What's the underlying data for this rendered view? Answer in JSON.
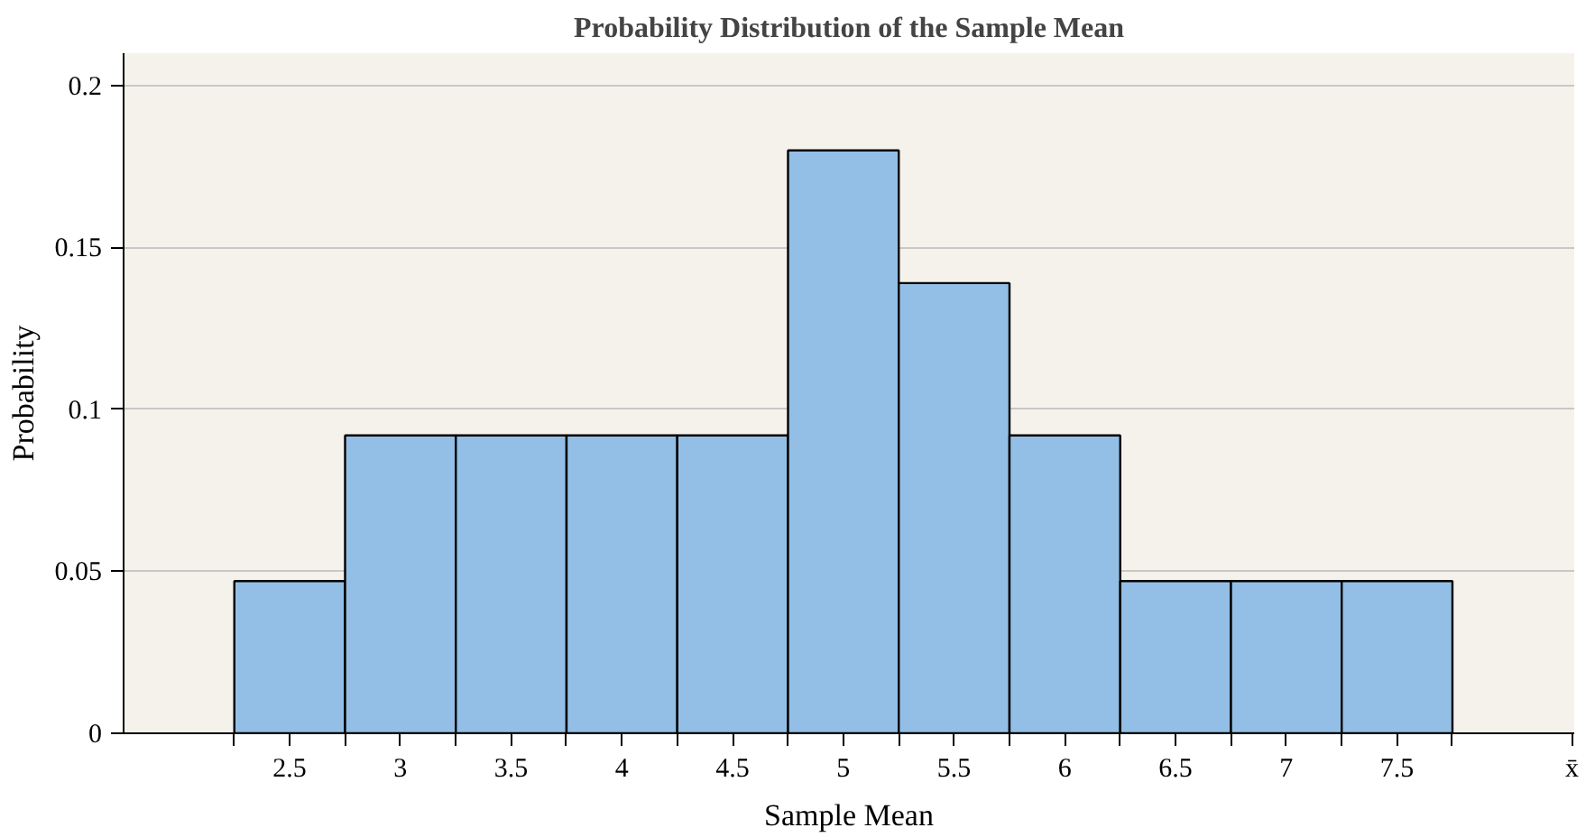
{
  "chart_data": {
    "type": "histogram",
    "title": "Probability Distribution of the Sample Mean",
    "xlabel": "Sample Mean",
    "ylabel": "Probability",
    "bins": [
      2.25,
      2.75,
      3.25,
      3.75,
      4.25,
      4.75,
      5.25,
      5.75,
      6.25,
      6.75,
      7.25,
      7.75
    ],
    "values": [
      0.047,
      0.092,
      0.092,
      0.092,
      0.092,
      0.18,
      0.139,
      0.092,
      0.047,
      0.047,
      0.047
    ],
    "color": "#93bfe6",
    "xlim": [
      1.75,
      8.3
    ],
    "ylim": [
      0,
      0.21
    ],
    "xticks": [
      {
        "value": 2.25,
        "label": null
      },
      2.5,
      {
        "value": 2.75,
        "label": null
      },
      3,
      {
        "value": 3.25,
        "label": null
      },
      3.5,
      {
        "value": 3.75,
        "label": null
      },
      4,
      {
        "value": 4.25,
        "label": null
      },
      4.5,
      {
        "value": 4.75,
        "label": null
      },
      5,
      {
        "value": 5.25,
        "label": null
      },
      5.5,
      {
        "value": 5.75,
        "label": null
      },
      6,
      {
        "value": 6.25,
        "label": null
      },
      6.5,
      {
        "value": 6.75,
        "label": null
      },
      7,
      {
        "value": 7.25,
        "label": null
      },
      7.5,
      {
        "value": 7.75,
        "label": null
      },
      {
        "value": 8.29,
        "label": "x̄"
      }
    ],
    "yticks": [
      0,
      0.05,
      0.1,
      0.15,
      0.2
    ],
    "grid": "y"
  }
}
